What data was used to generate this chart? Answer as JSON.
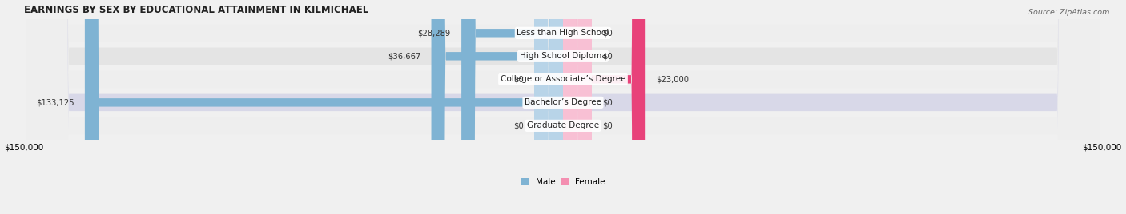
{
  "title": "EARNINGS BY SEX BY EDUCATIONAL ATTAINMENT IN KILMICHAEL",
  "source": "Source: ZipAtlas.com",
  "categories": [
    "Less than High School",
    "High School Diploma",
    "College or Associate’s Degree",
    "Bachelor’s Degree",
    "Graduate Degree"
  ],
  "male_values": [
    28289,
    36667,
    0,
    133125,
    0
  ],
  "female_values": [
    0,
    0,
    23000,
    0,
    0
  ],
  "male_color": "#7fb3d3",
  "male_stub_color": "#b8d4e8",
  "female_color": "#f48fb1",
  "female_stub_color": "#f8c0d4",
  "female_strong_color": "#e8427a",
  "male_label": "Male",
  "female_label": "Female",
  "x_max": 150000,
  "x_min": -150000,
  "stub_val": 8000,
  "row_colors": [
    "#eeeeee",
    "#e4e4e4",
    "#eeeeee",
    "#d8d8e8",
    "#eeeeee"
  ],
  "title_fontsize": 8.5,
  "label_fontsize": 7.5,
  "tick_fontsize": 7.5,
  "value_fontsize": 7.2
}
